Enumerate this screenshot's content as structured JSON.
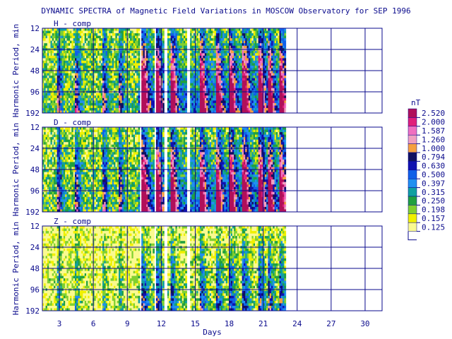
{
  "chart_data": {
    "type": "heatmap",
    "title": "DYNAMIC SPECTRA of Magnetic Field Variations in MOSCOW Observatory for SEP 1996",
    "xlabel": "Days",
    "ylabel": "Harmonic Period, min",
    "xlim": [
      1.5,
      31.5
    ],
    "x_ticks": [
      3,
      6,
      9,
      12,
      15,
      18,
      21,
      24,
      27,
      30
    ],
    "y_scale": "log",
    "y_ticks": [
      12,
      24,
      48,
      96,
      192
    ],
    "data_end_day": 23,
    "gaps": [
      [
        10.1,
        10.3
      ],
      [
        11.4,
        11.6
      ],
      [
        12.3,
        12.5
      ],
      [
        14.2,
        14.6
      ]
    ],
    "colorbar": {
      "unit": "nT",
      "levels": [
        "2.520",
        "2.000",
        "1.587",
        "1.260",
        "1.000",
        "0.794",
        "0.630",
        "0.500",
        "0.397",
        "0.315",
        "0.250",
        "0.198",
        "0.157",
        "0.125"
      ],
      "colors": [
        "#b0105a",
        "#e0207a",
        "#f070c0",
        "#f0a0c0",
        "#f5a040",
        "#101060",
        "#1010b0",
        "#1060e8",
        "#2090f0",
        "#10a0a0",
        "#20a040",
        "#80d030",
        "#f0f000",
        "#fafa90"
      ]
    },
    "panels": [
      {
        "label": "H - comp",
        "intensity": "high"
      },
      {
        "label": "D - comp",
        "intensity": "high"
      },
      {
        "label": "Z - comp",
        "intensity": "low"
      }
    ]
  }
}
